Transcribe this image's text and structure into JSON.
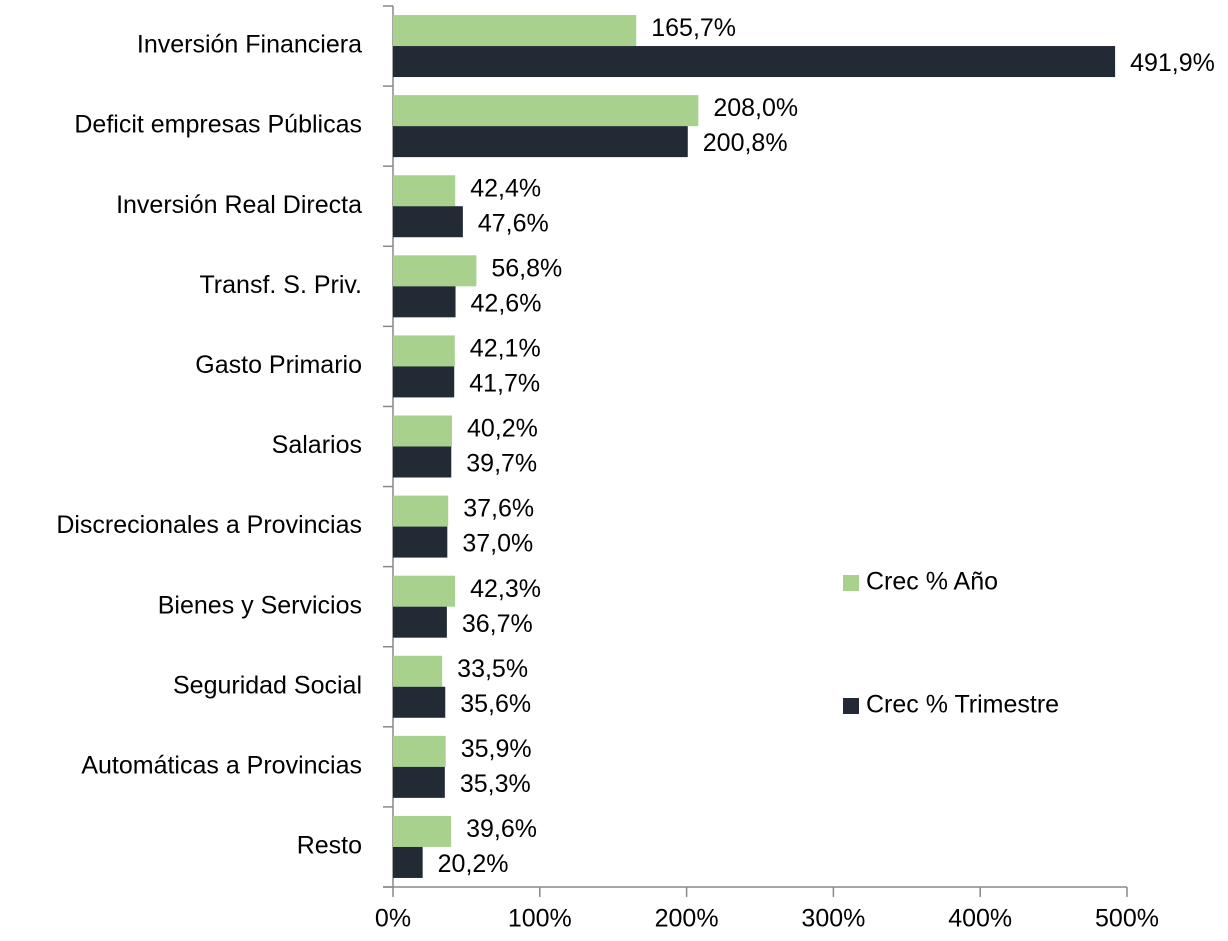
{
  "chart_data": {
    "type": "bar",
    "orientation": "horizontal",
    "categories": [
      "Inversión Financiera",
      "Deficit empresas Públicas",
      "Inversión Real Directa",
      "Transf. S. Priv.",
      "Gasto Primario",
      "Salarios",
      "Discrecionales a Provincias",
      "Bienes y Servicios",
      "Seguridad Social",
      "Automáticas a Provincias",
      "Resto"
    ],
    "series": [
      {
        "name": "Crec % Año",
        "color": "#a9d18e",
        "values": [
          165.7,
          208.0,
          42.4,
          56.8,
          42.1,
          40.2,
          37.6,
          42.3,
          33.5,
          35.9,
          39.6
        ],
        "value_labels": [
          "165,7%",
          "208,0%",
          "42,4%",
          "56,8%",
          "42,1%",
          "40,2%",
          "37,6%",
          "42,3%",
          "33,5%",
          "35,9%",
          "39,6%"
        ]
      },
      {
        "name": "Crec % Trimestre",
        "color": "#222a35",
        "values": [
          491.9,
          200.8,
          47.6,
          42.6,
          41.7,
          39.7,
          37.0,
          36.7,
          35.6,
          35.3,
          20.2
        ],
        "value_labels": [
          "491,9%",
          "200,8%",
          "47,6%",
          "42,6%",
          "41,7%",
          "39,7%",
          "37,0%",
          "36,7%",
          "35,6%",
          "35,3%",
          "20,2%"
        ]
      }
    ],
    "xlim": [
      0,
      500
    ],
    "xticks": [
      {
        "value": 0,
        "label": "0%"
      },
      {
        "value": 100,
        "label": "100%"
      },
      {
        "value": 200,
        "label": "200%"
      },
      {
        "value": 300,
        "label": "300%"
      },
      {
        "value": 400,
        "label": "400%"
      },
      {
        "value": 500,
        "label": "500%"
      }
    ],
    "legend": "right"
  }
}
